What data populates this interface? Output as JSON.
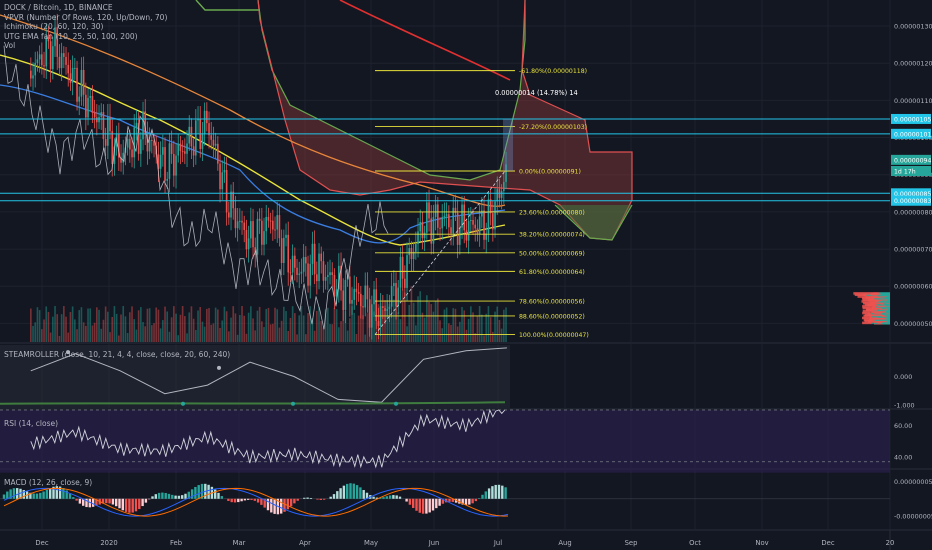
{
  "header": {
    "title": "DOCK / Bitcoin, 1D, BINANCE",
    "indicators": [
      "VPVR (Number Of Rows, 120, Up/Down, 70)",
      "Ichimoku (20, 60, 120, 30)",
      "UTG EMA fan (10, 25, 50, 100, 200)",
      "Vol"
    ]
  },
  "colors": {
    "background": "#131722",
    "up": "#26a69a",
    "down": "#ef5350",
    "cloud_bear": "#8b3a3a",
    "cloud_bull": "#3f7d3f",
    "fib_line": "#e8e33a",
    "hline": "#22c5e8",
    "rsi_band": "#2a1f4a"
  },
  "chart_data": [
    {
      "type": "line",
      "pane": "price",
      "title": "DOCK / Bitcoin, 1D, BINANCE",
      "x_ticks": [
        "Dec",
        "2020",
        "Feb",
        "Mar",
        "Apr",
        "May",
        "Jun",
        "Jul",
        "Aug",
        "Sep",
        "Oct",
        "Nov",
        "Dec",
        "20"
      ],
      "y_ticks": [
        "0.00000130",
        "0.00000120",
        "0.00000110",
        "0.00000100",
        "0.00000090",
        "0.00000080",
        "0.00000070",
        "0.00000060",
        "0.00000050"
      ],
      "ylim": [
        4.5e-07,
        1.37e-06
      ],
      "series": [
        {
          "name": "Close",
          "x": [
            "Nov 25",
            "Dec 5",
            "Dec 15",
            "Dec 25",
            "Jan 5",
            "Jan 15",
            "Jan 25",
            "Feb 5",
            "Feb 15",
            "Feb 25",
            "Mar 5",
            "Mar 15",
            "Mar 25",
            "Apr 5",
            "Apr 15",
            "Apr 25",
            "May 5",
            "May 15",
            "May 25",
            "Jun 5",
            "Jun 15",
            "Jun 25",
            "Jul 1",
            "Jul 4"
          ],
          "y": [
            1.18e-06,
            1.25e-06,
            1.15e-06,
            1.05e-06,
            9.5e-07,
            1.02e-06,
            9.2e-07,
            9.8e-07,
            1.04e-06,
            8.2e-07,
            7.2e-07,
            7.8e-07,
            6.4e-07,
            6.6e-07,
            6e-07,
            5.7e-07,
            5.2e-07,
            6.3e-07,
            7.7e-07,
            7.8e-07,
            7.6e-07,
            7.7e-07,
            8.5e-07,
            9.3e-07
          ]
        }
      ],
      "horizontal_levels": [
        "0.00000105",
        "0.00000101",
        "0.00000085",
        "0.00000083"
      ],
      "fibonacci": [
        {
          "label": "-61.80%(0.00000118)",
          "value": 1.18e-06
        },
        {
          "label": "-27.20%(0.00000103)",
          "value": 1.03e-06
        },
        {
          "label": "0.00%(0.00000091)",
          "value": 9.1e-07
        },
        {
          "label": "23.60%(0.00000080)",
          "value": 8e-07
        },
        {
          "label": "38.20%(0.00000074)",
          "value": 7.4e-07
        },
        {
          "label": "50.00%(0.00000069)",
          "value": 6.9e-07
        },
        {
          "label": "61.80%(0.00000064)",
          "value": 6.4e-07
        },
        {
          "label": "78.60%(0.00000056)",
          "value": 5.6e-07
        },
        {
          "label": "88.60%(0.00000052)",
          "value": 5.2e-07
        },
        {
          "label": "100.00%(0.00000047)",
          "value": 4.7e-07
        }
      ],
      "measure_label": "0.00000014 (14.78%) 14",
      "price_tags": [
        {
          "text": "0.00000105",
          "value": 1.05e-06,
          "color": "#22c5e8"
        },
        {
          "text": "0.00000101",
          "value": 1.01e-06,
          "color": "#22c5e8"
        },
        {
          "text": "0.00000094",
          "value": 9.4e-07,
          "color": "#26a69a"
        },
        {
          "text": "1d 17h",
          "value": 9.1e-07,
          "color": "#26a69a"
        },
        {
          "text": "0.00000085",
          "value": 8.5e-07,
          "color": "#22c5e8"
        },
        {
          "text": "0.00000083",
          "value": 8.3e-07,
          "color": "#22c5e8"
        }
      ]
    },
    {
      "type": "line",
      "pane": "steamroller",
      "title": "STEAMROLLER (close, 10, 21, 4, 4, close, close, 20, 60, 240)",
      "y_ticks": [
        "0.000",
        "-1.000"
      ],
      "ylim": [
        -1.1,
        1.1
      ],
      "series": [
        {
          "name": "",
          "x": [
            "Nov 25",
            "Dec 15",
            "Jan 5",
            "Jan 25",
            "Feb 15",
            "Mar 5",
            "Mar 25",
            "Apr 15",
            "May 5",
            "May 25",
            "Jun 15",
            "Jul 4"
          ],
          "y": [
            0.2,
            0.8,
            0.2,
            -0.6,
            -0.3,
            0.5,
            0.0,
            -0.8,
            -0.9,
            0.6,
            0.9,
            1.0
          ]
        }
      ]
    },
    {
      "type": "line",
      "pane": "rsi",
      "title": "RSI (14, close)",
      "y_ticks": [
        "60.00",
        "40.00"
      ],
      "ylim": [
        33,
        70
      ],
      "series": [
        {
          "name": "",
          "x": [
            "Nov 25",
            "Dec 15",
            "Jan 5",
            "Jan 25",
            "Feb 15",
            "Mar 5",
            "Mar 25",
            "Apr 15",
            "May 5",
            "May 25",
            "Jun 15",
            "Jul 4"
          ],
          "y": [
            48,
            56,
            45,
            44,
            53,
            40,
            42,
            38,
            37,
            64,
            60,
            72
          ]
        }
      ]
    },
    {
      "type": "bar",
      "pane": "macd",
      "title": "MACD (12, 26, close, 9)",
      "y_ticks": [
        "0.00000005",
        "-0.00000005"
      ],
      "ylim": [
        -9e-08,
        8e-08
      ]
    }
  ]
}
